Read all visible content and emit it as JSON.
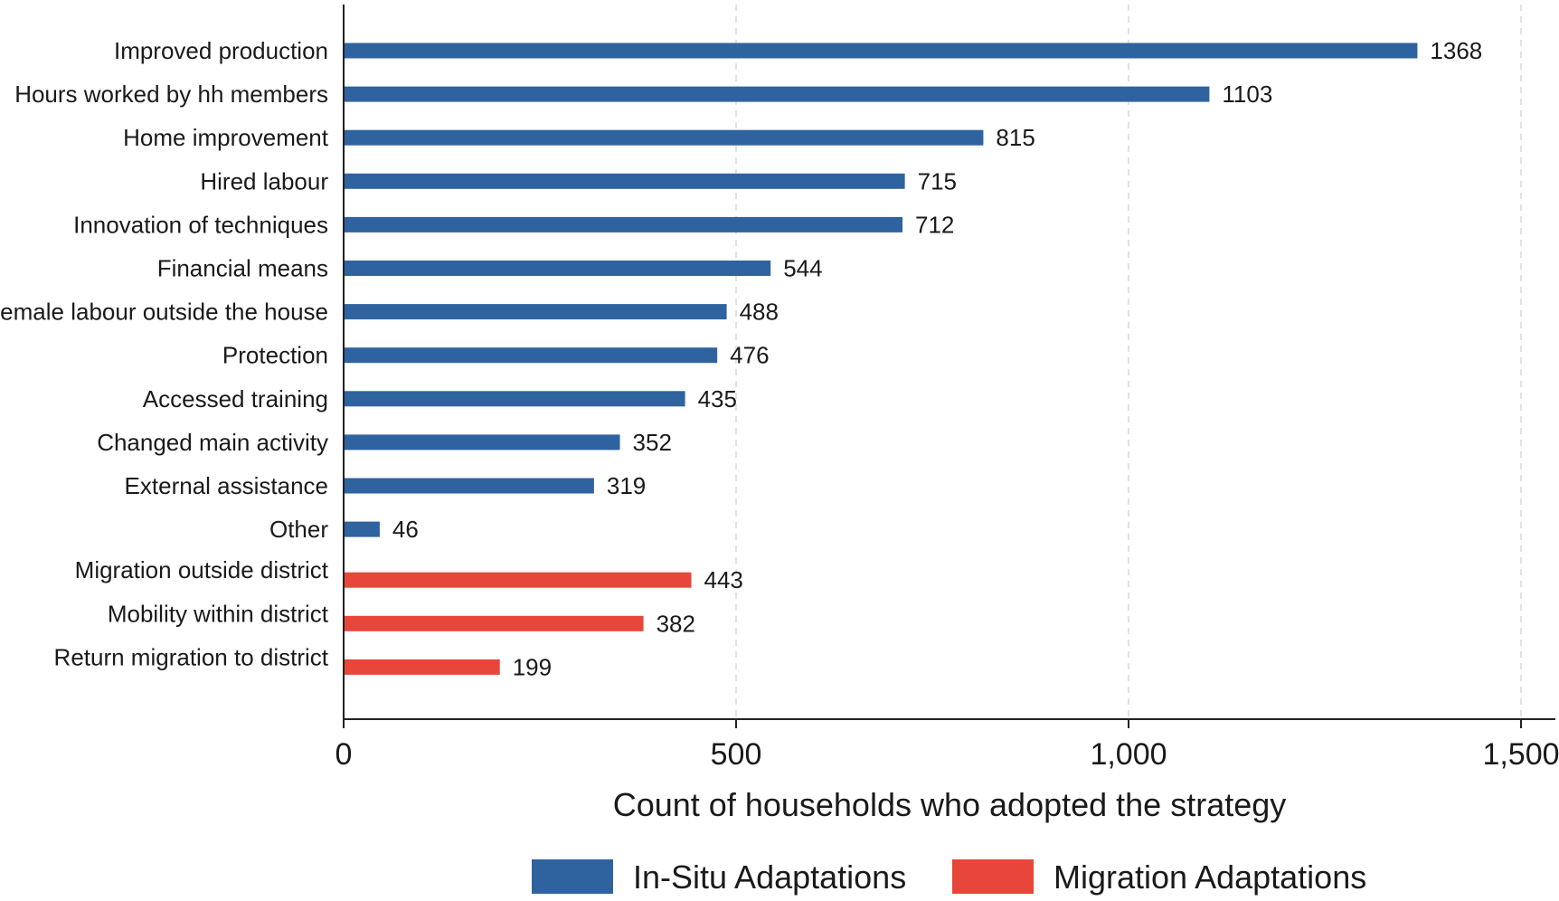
{
  "chart_data": {
    "type": "bar",
    "orientation": "horizontal",
    "xlabel": "Count of households who adopted the strategy",
    "ylabel": "",
    "xlim": [
      0,
      1500
    ],
    "x_ticks": [
      0,
      500,
      1000,
      1500
    ],
    "x_tick_labels": [
      "0",
      "500",
      "1,000",
      "1,500"
    ],
    "grid": "vertical dashed",
    "legend_position": "bottom",
    "colors": {
      "in_situ": "#2f63a0",
      "migration": "#e8463a"
    },
    "series": [
      {
        "name": "In-Situ Adaptations",
        "color": "#2f63a0",
        "categories": [
          "Improved production",
          "Hours worked by hh members",
          "Home improvement",
          "Hired labour",
          "Innovation of techniques",
          "Financial means",
          "Female labour outside the house",
          "Protection",
          "Accessed training",
          "Changed main activity",
          "External assistance",
          "Other"
        ],
        "values": [
          1368,
          1103,
          815,
          715,
          712,
          544,
          488,
          476,
          435,
          352,
          319,
          46
        ]
      },
      {
        "name": "Migration Adaptations",
        "color": "#e8463a",
        "categories": [
          "Migration outside district",
          "Mobility within district",
          "Return migration to district"
        ],
        "values": [
          443,
          382,
          199
        ]
      }
    ]
  }
}
